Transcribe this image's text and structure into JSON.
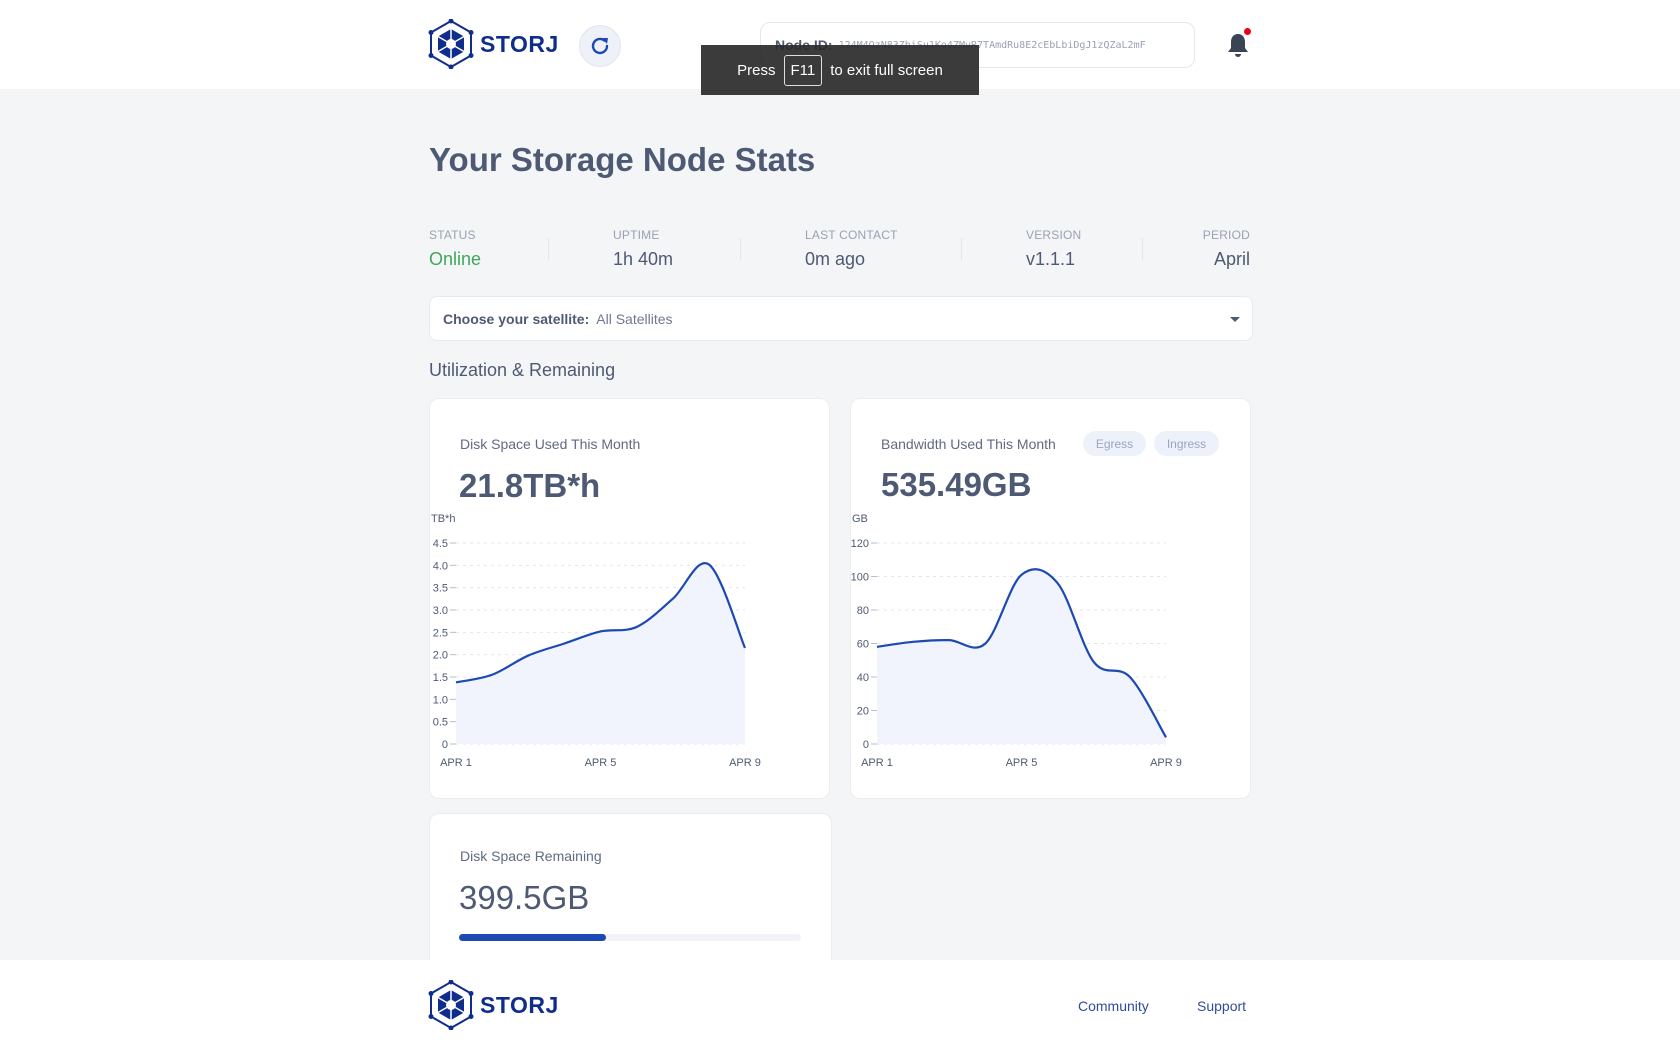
{
  "header": {
    "logo_text": "STORJ",
    "node_id_label": "Node ID:",
    "node_id_value": "124M4QzN83ZhiSu1Ko4ZMvR7TAmdRu8E2cEbLbiDgJ1zQZaL2mF"
  },
  "fullscreen_toast": {
    "before": "Press",
    "key": "F11",
    "after": "to exit full screen"
  },
  "page_title": "Your Storage Node Stats",
  "stats": [
    {
      "label": "STATUS",
      "value": "Online"
    },
    {
      "label": "UPTIME",
      "value": "1h 40m"
    },
    {
      "label": "LAST CONTACT",
      "value": "0m ago"
    },
    {
      "label": "VERSION",
      "value": "v1.1.1"
    },
    {
      "label": "PERIOD",
      "value": "April"
    }
  ],
  "satellite": {
    "label": "Choose your satellite:",
    "value": "All Satellites"
  },
  "section_title": "Utilization & Remaining",
  "disk_card": {
    "title": "Disk Space Used This Month",
    "value": "21.8TB*h"
  },
  "bandwidth_card": {
    "title": "Bandwidth Used This Month",
    "value": "535.49GB",
    "toggles": [
      "Egress",
      "Ingress"
    ]
  },
  "remaining_card": {
    "title": "Disk Space Remaining",
    "value": "399.5GB",
    "used_fraction": 0.43
  },
  "footer": {
    "logo_text": "STORJ",
    "links": [
      "Community",
      "Support"
    ]
  },
  "colors": {
    "brand": "#0f2d8c",
    "online": "#42a55d",
    "line": "#1c49b3",
    "area": "#f1f4fc"
  },
  "chart_data": [
    {
      "type": "area",
      "title": "",
      "ylabel": "TB*h",
      "x_ticks": [
        "APR 1",
        "APR 5",
        "APR 9"
      ],
      "y_ticks": [
        "4.5",
        "4.0",
        "3.5",
        "3.0",
        "2.5",
        "2.0",
        "1.5",
        "1.0",
        "0.5",
        "0"
      ],
      "ylim": [
        0,
        4.5
      ],
      "x": [
        1,
        2,
        3,
        4,
        5,
        6,
        7,
        8,
        9
      ],
      "values": [
        1.38,
        1.55,
        1.98,
        2.25,
        2.52,
        2.62,
        3.25,
        4.02,
        2.15
      ],
      "grid": true
    },
    {
      "type": "area",
      "title": "",
      "ylabel": "GB",
      "x_ticks": [
        "APR 1",
        "APR 5",
        "APR 9"
      ],
      "y_ticks": [
        "120",
        "100",
        "80",
        "60",
        "40",
        "20",
        "0"
      ],
      "ylim": [
        0,
        120
      ],
      "x": [
        1,
        2,
        3,
        4,
        5,
        6,
        7,
        8,
        9
      ],
      "values": [
        58,
        61,
        62,
        60,
        101,
        96,
        49,
        40,
        4
      ],
      "grid": true
    }
  ]
}
